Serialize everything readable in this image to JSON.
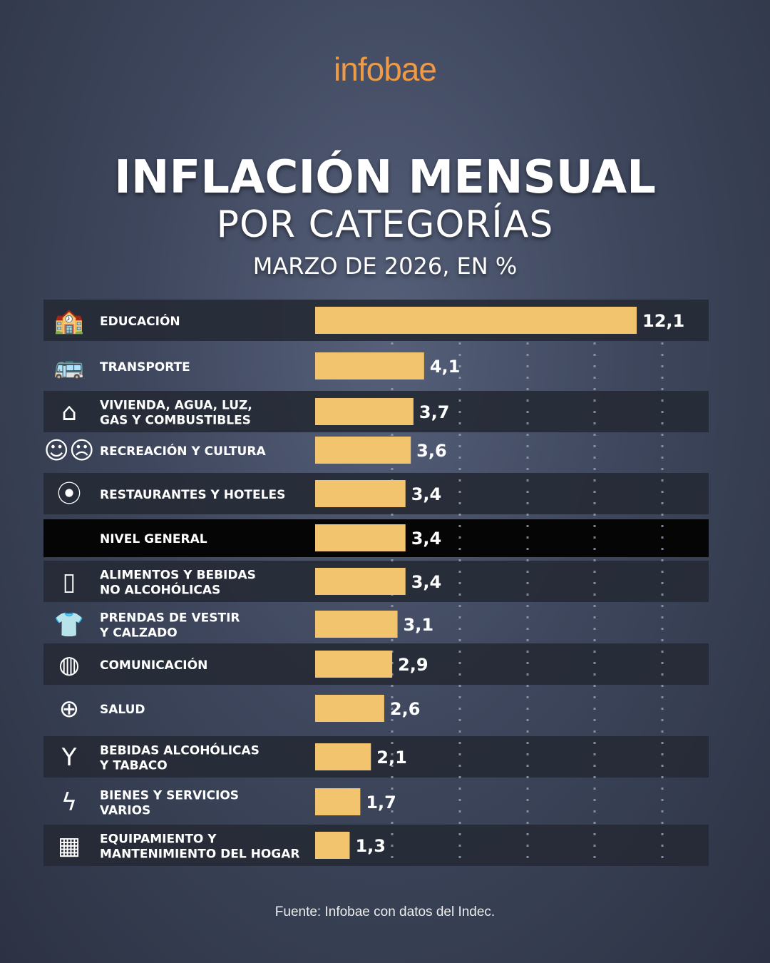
{
  "brand": "infobae",
  "title": "INFLACIÓN MENSUAL",
  "subtitle": "POR CATEGORÍAS",
  "period": "MARZO DE 2026, EN %",
  "source": "Fuente: Infobae con datos del Indec.",
  "colors": {
    "bar": "#f2c46d",
    "logo": "#ef9a45",
    "stripe": "#262a36",
    "highlight": "#050505"
  },
  "chart_data": {
    "type": "bar",
    "orientation": "horizontal",
    "title": "INFLACIÓN MENSUAL POR CATEGORÍAS",
    "categories": [
      "EDUCACIÓN",
      "TRANSPORTE",
      "VIVIENDA, AGUA, LUZ,\nGAS Y COMBUSTIBLES",
      "RECREACIÓN Y CULTURA",
      "RESTAURANTES Y HOTELES",
      "NIVEL GENERAL",
      "ALIMENTOS Y BEBIDAS\nNO ALCOHÓLICAS",
      "PRENDAS DE VESTIR\nY CALZADO",
      "COMUNICACIÓN",
      "SALUD",
      "BEBIDAS ALCOHÓLICAS\nY TABACO",
      "BIENES Y SERVICIOS\nVARIOS",
      "EQUIPAMIENTO Y\nMANTENIMIENTO DEL HOGAR"
    ],
    "values": [
      12.1,
      4.1,
      3.7,
      3.6,
      3.4,
      3.4,
      3.4,
      3.1,
      2.9,
      2.6,
      2.1,
      1.7,
      1.3
    ],
    "labels": [
      "12,1",
      "4,1",
      "3,7",
      "3,6",
      "3,4",
      "3,4",
      "3,4",
      "3,1",
      "2,9",
      "2,6",
      "2,1",
      "1,7",
      "1,3"
    ],
    "icons": [
      "school-icon",
      "bus-icon",
      "house-icon",
      "theater-masks-icon",
      "restaurant-icon",
      "",
      "bottle-icon",
      "tshirt-icon",
      "globe-icon",
      "health-pin-icon",
      "wine-glass-icon",
      "lightning-icon",
      "furniture-icon"
    ],
    "highlight": "NIVEL GENERAL",
    "grid": "dotted vertical"
  }
}
